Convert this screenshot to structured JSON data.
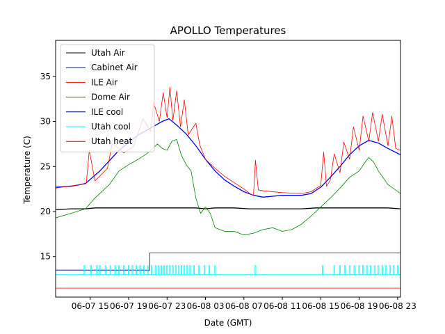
{
  "chart_data": {
    "type": "line",
    "title": "APOLLO Temperatures",
    "xlabel": "Date (GMT)",
    "ylabel": "Temperature (C)",
    "x_unit": "hours since 06-07 00:00 GMT",
    "xlim": [
      11.4,
      47.3
    ],
    "ylim": [
      10.5,
      39.0
    ],
    "grid": false,
    "legend_location": "top-left",
    "xticks": [
      {
        "value": 15,
        "label": "06-07 15"
      },
      {
        "value": 19,
        "label": "06-07 19"
      },
      {
        "value": 23,
        "label": "06-07 23"
      },
      {
        "value": 27,
        "label": "06-08 03"
      },
      {
        "value": 31,
        "label": "06-08 07"
      },
      {
        "value": 35,
        "label": "06-08 11"
      },
      {
        "value": 39,
        "label": "06-08 15"
      },
      {
        "value": 43,
        "label": "06-08 19"
      },
      {
        "value": 47,
        "label": "06-08 23"
      }
    ],
    "yticks": [
      {
        "value": 15,
        "label": "15"
      },
      {
        "value": 20,
        "label": "20"
      },
      {
        "value": 25,
        "label": "25"
      },
      {
        "value": 30,
        "label": "30"
      },
      {
        "value": 35,
        "label": "35"
      }
    ],
    "series": [
      {
        "name": "Utah Air",
        "color": "#000000",
        "x": [
          11.4,
          13.0,
          14.5,
          15.5,
          16.5,
          18.0,
          20.0,
          22.0,
          24.0,
          26.0,
          27.0,
          28.0,
          30.0,
          31.5,
          33.0,
          35.0,
          37.0,
          38.5,
          40.0,
          42.0,
          44.0,
          46.0,
          47.3
        ],
        "y": [
          20.2,
          20.3,
          20.3,
          20.4,
          20.4,
          20.4,
          20.4,
          20.4,
          20.4,
          20.4,
          20.3,
          20.4,
          20.4,
          20.3,
          20.3,
          20.3,
          20.3,
          20.4,
          20.4,
          20.4,
          20.4,
          20.4,
          20.3
        ]
      },
      {
        "name": "Cabinet Air",
        "color": "#0000ff",
        "x": [
          11.4,
          13.0,
          14.5,
          16.0,
          18.0,
          20.0,
          21.5,
          22.5,
          23.2,
          24.0,
          25.0,
          26.0,
          27.0,
          28.0,
          29.0,
          30.0,
          31.0,
          32.0,
          33.0,
          34.0,
          35.0,
          36.0,
          37.0,
          38.0,
          39.0,
          40.0,
          41.0,
          42.0,
          43.0,
          44.0,
          45.0,
          46.0,
          47.3
        ],
        "y": [
          22.7,
          22.8,
          23.1,
          24.5,
          26.8,
          28.5,
          29.4,
          30.0,
          30.3,
          29.6,
          28.6,
          27.3,
          25.8,
          24.5,
          23.5,
          22.8,
          22.2,
          21.8,
          21.6,
          21.7,
          21.8,
          21.8,
          21.8,
          22.0,
          22.7,
          23.8,
          25.0,
          26.3,
          27.3,
          27.9,
          27.6,
          27.0,
          26.3
        ]
      },
      {
        "name": "ILE Air",
        "color": "#ff0000",
        "x": [
          11.4,
          14.0,
          14.6,
          14.9,
          15.5,
          16.8,
          17.3,
          18.5,
          19.5,
          20.5,
          21.3,
          21.6,
          22.2,
          22.6,
          23.0,
          23.3,
          23.6,
          24.0,
          24.4,
          24.8,
          25.2,
          26.0,
          26.4,
          27.0,
          28.0,
          29.0,
          30.0,
          31.0,
          31.6,
          32.0,
          32.2,
          32.5,
          33.0,
          35.0,
          37.0,
          38.0,
          39.0,
          39.3,
          39.6,
          40.0,
          40.4,
          41.0,
          41.4,
          42.0,
          42.4,
          43.0,
          43.4,
          44.0,
          44.4,
          45.0,
          45.4,
          46.0,
          46.4,
          46.8,
          47.3
        ],
        "y": [
          22.6,
          23.0,
          23.2,
          26.8,
          23.4,
          24.8,
          27.6,
          26.5,
          27.2,
          30.3,
          28.9,
          32.1,
          30.0,
          33.2,
          30.4,
          33.8,
          30.1,
          33.4,
          29.4,
          32.4,
          28.5,
          29.8,
          27.4,
          25.8,
          24.8,
          23.9,
          23.2,
          22.5,
          22.0,
          21.8,
          25.7,
          22.4,
          22.3,
          22.1,
          22.0,
          22.2,
          22.9,
          26.6,
          22.8,
          23.5,
          26.4,
          24.3,
          27.7,
          25.8,
          29.4,
          26.8,
          30.6,
          27.8,
          31.0,
          27.8,
          30.8,
          27.3,
          30.6,
          27.0,
          26.8
        ]
      },
      {
        "name": "Dome Air",
        "color": "#008000",
        "x": [
          11.4,
          13.0,
          14.5,
          15.5,
          17.0,
          18.0,
          19.0,
          20.0,
          21.0,
          22.0,
          22.5,
          23.0,
          23.5,
          24.0,
          24.5,
          25.0,
          25.5,
          26.0,
          26.5,
          27.0,
          27.5,
          28.0,
          29.0,
          30.0,
          31.0,
          32.0,
          33.0,
          34.0,
          35.0,
          36.0,
          37.0,
          38.0,
          39.0,
          40.0,
          41.0,
          42.0,
          43.0,
          43.5,
          44.0,
          44.5,
          45.0,
          46.0,
          47.3
        ],
        "y": [
          19.3,
          19.8,
          20.3,
          21.5,
          23.0,
          24.5,
          25.2,
          25.8,
          26.5,
          27.5,
          27.0,
          26.8,
          27.8,
          28.0,
          26.2,
          25.2,
          24.5,
          21.5,
          19.8,
          20.5,
          19.8,
          18.2,
          17.8,
          17.8,
          17.4,
          17.6,
          18.0,
          18.2,
          17.8,
          18.0,
          18.6,
          19.5,
          20.5,
          21.5,
          22.6,
          23.8,
          24.5,
          25.3,
          26.0,
          25.5,
          24.5,
          23.0,
          22.0
        ]
      },
      {
        "name": "ILE cool",
        "color": "#000080",
        "x": [
          11.4,
          21.2,
          21.2,
          47.3
        ],
        "y": [
          13.5,
          13.5,
          15.4,
          15.4
        ]
      },
      {
        "name": "Utah cool",
        "color": "#00ffff",
        "style": "pulses",
        "baseline": 13.0,
        "pulse_top": 14.0,
        "x": [
          14.4,
          15.1,
          15.7,
          16.0,
          16.6,
          17.1,
          17.6,
          18.0,
          18.5,
          19.0,
          19.4,
          19.8,
          20.2,
          20.6,
          21.0,
          21.4,
          21.8,
          22.1,
          22.4,
          22.7,
          23.0,
          23.3,
          23.6,
          23.9,
          24.2,
          24.5,
          24.8,
          25.1,
          25.4,
          25.8,
          26.3,
          26.9,
          27.4,
          28.0,
          32.2,
          39.2,
          40.4,
          41.0,
          41.5,
          42.0,
          42.5,
          43.0,
          43.4,
          43.8,
          44.2,
          44.6,
          45.0,
          45.4,
          45.8,
          46.2,
          46.6,
          47.0
        ]
      },
      {
        "name": "Utah heat",
        "color": "#ff0000",
        "x": [
          11.4,
          47.3
        ],
        "y": [
          11.5,
          11.5
        ]
      }
    ]
  }
}
